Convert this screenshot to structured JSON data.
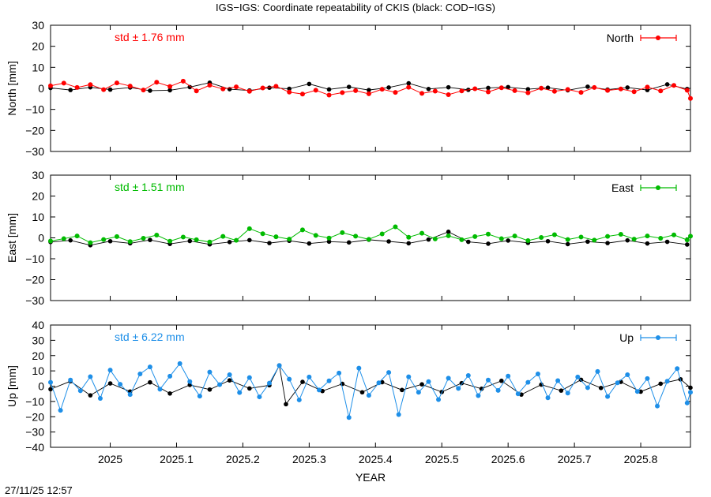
{
  "title": "IGS−IGS: Coordinate repeatability of CKIS (black: COD−IGS)",
  "timestamp": "27/11/25 12:57",
  "chart_data": {
    "type": "scatter",
    "xlabel": "YEAR",
    "xlim": [
      2024.91,
      2025.875
    ],
    "xticks": [
      2025,
      2025.1,
      2025.2,
      2025.3,
      2025.4,
      2025.5,
      2025.6,
      2025.7,
      2025.8
    ],
    "xtick_labels": [
      "2025",
      "2025.1",
      "2025.2",
      "2025.3",
      "2025.4",
      "2025.5",
      "2025.6",
      "2025.7",
      "2025.8"
    ],
    "grid": false,
    "legend_position": "top-right",
    "panels": [
      {
        "key": "north",
        "ylabel": "North [mm]",
        "ylim": [
          -30,
          30
        ],
        "yticks": [
          30,
          20,
          10,
          0,
          -10,
          -20,
          -30
        ],
        "ytick_labels": [
          "30",
          "20",
          "10",
          "0",
          "−10",
          "−20",
          "−30"
        ],
        "std_label": "std ± 1.76 mm",
        "legend_label": "North",
        "color": "#ff0000",
        "ref_color": "#000000",
        "series_points": [
          [
            2024.91,
            1.2
          ],
          [
            2024.93,
            2.5
          ],
          [
            2024.95,
            0.4
          ],
          [
            2024.97,
            1.8
          ],
          [
            2024.99,
            -0.6
          ],
          [
            2025.01,
            2.6
          ],
          [
            2025.03,
            1.1
          ],
          [
            2025.05,
            -0.8
          ],
          [
            2025.07,
            2.9
          ],
          [
            2025.09,
            0.9
          ],
          [
            2025.11,
            3.4
          ],
          [
            2025.13,
            -1.2
          ],
          [
            2025.15,
            1.5
          ],
          [
            2025.17,
            -0.3
          ],
          [
            2025.19,
            0.7
          ],
          [
            2025.21,
            -1.4
          ],
          [
            2025.23,
            0.2
          ],
          [
            2025.25,
            1.0
          ],
          [
            2025.27,
            -1.8
          ],
          [
            2025.29,
            -2.7
          ],
          [
            2025.31,
            -0.9
          ],
          [
            2025.33,
            -3.2
          ],
          [
            2025.35,
            -2.0
          ],
          [
            2025.37,
            -1.1
          ],
          [
            2025.39,
            -2.6
          ],
          [
            2025.41,
            -0.4
          ],
          [
            2025.43,
            -1.9
          ],
          [
            2025.45,
            0.5
          ],
          [
            2025.47,
            -2.4
          ],
          [
            2025.49,
            -1.3
          ],
          [
            2025.51,
            -3.0
          ],
          [
            2025.53,
            -1.2
          ],
          [
            2025.55,
            -0.2
          ],
          [
            2025.57,
            -1.7
          ],
          [
            2025.59,
            0.3
          ],
          [
            2025.61,
            -1.1
          ],
          [
            2025.63,
            -2.1
          ],
          [
            2025.65,
            0.1
          ],
          [
            2025.67,
            -1.4
          ],
          [
            2025.69,
            -0.5
          ],
          [
            2025.71,
            -1.9
          ],
          [
            2025.73,
            0.4
          ],
          [
            2025.75,
            -1.0
          ],
          [
            2025.77,
            -0.3
          ],
          [
            2025.79,
            -1.6
          ],
          [
            2025.81,
            0.6
          ],
          [
            2025.83,
            -1.2
          ],
          [
            2025.85,
            1.4
          ],
          [
            2025.87,
            -0.9
          ],
          [
            2025.875,
            -4.8
          ]
        ],
        "ref_points": [
          [
            2024.91,
            0.2
          ],
          [
            2024.94,
            -0.8
          ],
          [
            2024.97,
            0.5
          ],
          [
            2025.0,
            -0.6
          ],
          [
            2025.03,
            0.4
          ],
          [
            2025.06,
            -1.1
          ],
          [
            2025.09,
            -0.9
          ],
          [
            2025.12,
            0.6
          ],
          [
            2025.15,
            2.7
          ],
          [
            2025.18,
            -0.4
          ],
          [
            2025.21,
            -1.0
          ],
          [
            2025.24,
            0.3
          ],
          [
            2025.27,
            -0.2
          ],
          [
            2025.3,
            2.1
          ],
          [
            2025.33,
            -0.5
          ],
          [
            2025.36,
            0.7
          ],
          [
            2025.39,
            -0.8
          ],
          [
            2025.42,
            0.4
          ],
          [
            2025.45,
            2.4
          ],
          [
            2025.48,
            -0.3
          ],
          [
            2025.51,
            0.5
          ],
          [
            2025.54,
            -0.7
          ],
          [
            2025.57,
            0.2
          ],
          [
            2025.6,
            0.6
          ],
          [
            2025.63,
            -0.4
          ],
          [
            2025.66,
            0.3
          ],
          [
            2025.69,
            -0.9
          ],
          [
            2025.72,
            0.8
          ],
          [
            2025.75,
            -0.6
          ],
          [
            2025.78,
            0.4
          ],
          [
            2025.81,
            -0.8
          ],
          [
            2025.84,
            1.9
          ],
          [
            2025.87,
            -0.3
          ]
        ]
      },
      {
        "key": "east",
        "ylabel": "East [mm]",
        "ylim": [
          -30,
          30
        ],
        "yticks": [
          30,
          20,
          10,
          0,
          -10,
          -20,
          -30
        ],
        "ytick_labels": [
          "30",
          "20",
          "10",
          "0",
          "−10",
          "−20",
          "−30"
        ],
        "std_label": "std ± 1.51 mm",
        "legend_label": "East",
        "color": "#00bb00",
        "ref_color": "#000000",
        "series_points": [
          [
            2024.91,
            -1.5
          ],
          [
            2024.93,
            -0.4
          ],
          [
            2024.95,
            0.9
          ],
          [
            2024.97,
            -2.3
          ],
          [
            2024.99,
            -0.8
          ],
          [
            2025.01,
            0.6
          ],
          [
            2025.03,
            -1.8
          ],
          [
            2025.05,
            -0.2
          ],
          [
            2025.07,
            1.3
          ],
          [
            2025.09,
            -1.6
          ],
          [
            2025.11,
            0.4
          ],
          [
            2025.13,
            -0.9
          ],
          [
            2025.15,
            -2.0
          ],
          [
            2025.17,
            0.7
          ],
          [
            2025.19,
            -1.2
          ],
          [
            2025.21,
            4.4
          ],
          [
            2025.23,
            2.0
          ],
          [
            2025.25,
            0.5
          ],
          [
            2025.27,
            -0.6
          ],
          [
            2025.29,
            3.8
          ],
          [
            2025.31,
            1.2
          ],
          [
            2025.33,
            -0.1
          ],
          [
            2025.35,
            2.5
          ],
          [
            2025.37,
            0.8
          ],
          [
            2025.39,
            -0.7
          ],
          [
            2025.41,
            1.9
          ],
          [
            2025.43,
            5.3
          ],
          [
            2025.45,
            0.3
          ],
          [
            2025.47,
            2.2
          ],
          [
            2025.49,
            -0.5
          ],
          [
            2025.51,
            1.0
          ],
          [
            2025.53,
            -0.9
          ],
          [
            2025.55,
            0.6
          ],
          [
            2025.57,
            1.8
          ],
          [
            2025.59,
            -0.4
          ],
          [
            2025.61,
            0.9
          ],
          [
            2025.63,
            -1.3
          ],
          [
            2025.65,
            0.2
          ],
          [
            2025.67,
            1.5
          ],
          [
            2025.69,
            -0.8
          ],
          [
            2025.71,
            0.4
          ],
          [
            2025.73,
            -1.1
          ],
          [
            2025.75,
            0.7
          ],
          [
            2025.77,
            1.7
          ],
          [
            2025.79,
            -0.6
          ],
          [
            2025.81,
            0.9
          ],
          [
            2025.83,
            -0.2
          ],
          [
            2025.85,
            1.4
          ],
          [
            2025.87,
            -1.0
          ],
          [
            2025.875,
            0.8
          ]
        ],
        "ref_points": [
          [
            2024.91,
            -2.0
          ],
          [
            2024.94,
            -1.2
          ],
          [
            2024.97,
            -3.5
          ],
          [
            2025.0,
            -1.6
          ],
          [
            2025.03,
            -2.6
          ],
          [
            2025.06,
            -1.0
          ],
          [
            2025.09,
            -2.9
          ],
          [
            2025.12,
            -1.5
          ],
          [
            2025.15,
            -3.1
          ],
          [
            2025.18,
            -2.0
          ],
          [
            2025.21,
            -1.1
          ],
          [
            2025.24,
            -2.5
          ],
          [
            2025.27,
            -1.4
          ],
          [
            2025.3,
            -2.7
          ],
          [
            2025.33,
            -1.8
          ],
          [
            2025.36,
            -2.2
          ],
          [
            2025.39,
            -0.9
          ],
          [
            2025.42,
            -1.7
          ],
          [
            2025.45,
            -2.6
          ],
          [
            2025.48,
            -0.8
          ],
          [
            2025.51,
            2.9
          ],
          [
            2025.54,
            -1.9
          ],
          [
            2025.57,
            -2.8
          ],
          [
            2025.6,
            -1.3
          ],
          [
            2025.63,
            -2.4
          ],
          [
            2025.66,
            -1.6
          ],
          [
            2025.69,
            -3.0
          ],
          [
            2025.72,
            -1.8
          ],
          [
            2025.75,
            -2.5
          ],
          [
            2025.78,
            -1.2
          ],
          [
            2025.81,
            -2.7
          ],
          [
            2025.84,
            -1.9
          ],
          [
            2025.87,
            -3.2
          ]
        ]
      },
      {
        "key": "up",
        "ylabel": "Up [mm]",
        "ylim": [
          -40,
          40
        ],
        "yticks": [
          40,
          30,
          20,
          10,
          0,
          -10,
          -20,
          -30,
          -40
        ],
        "ytick_labels": [
          "40",
          "30",
          "20",
          "10",
          "0",
          "−10",
          "−20",
          "−30",
          "−40"
        ],
        "std_label": "std ± 6.22 mm",
        "legend_label": "Up",
        "color": "#1e8fe8",
        "ref_color": "#000000",
        "series_points": [
          [
            2024.91,
            2.5
          ],
          [
            2024.925,
            -15.8
          ],
          [
            2024.94,
            4.0
          ],
          [
            2024.955,
            -3.0
          ],
          [
            2024.97,
            6.2
          ],
          [
            2024.985,
            -8.0
          ],
          [
            2025.0,
            10.5
          ],
          [
            2025.015,
            1.2
          ],
          [
            2025.03,
            -5.5
          ],
          [
            2025.045,
            8.0
          ],
          [
            2025.06,
            12.6
          ],
          [
            2025.075,
            -2.0
          ],
          [
            2025.09,
            6.5
          ],
          [
            2025.105,
            14.8
          ],
          [
            2025.12,
            3.0
          ],
          [
            2025.135,
            -6.5
          ],
          [
            2025.15,
            9.2
          ],
          [
            2025.165,
            1.0
          ],
          [
            2025.18,
            7.5
          ],
          [
            2025.195,
            -4.2
          ],
          [
            2025.21,
            5.6
          ],
          [
            2025.225,
            -7.0
          ],
          [
            2025.24,
            2.0
          ],
          [
            2025.255,
            13.5
          ],
          [
            2025.27,
            4.6
          ],
          [
            2025.285,
            -9.0
          ],
          [
            2025.3,
            6.0
          ],
          [
            2025.315,
            -2.5
          ],
          [
            2025.33,
            3.5
          ],
          [
            2025.345,
            8.6
          ],
          [
            2025.36,
            -20.5
          ],
          [
            2025.375,
            11.8
          ],
          [
            2025.39,
            -6.0
          ],
          [
            2025.405,
            2.2
          ],
          [
            2025.42,
            9.0
          ],
          [
            2025.435,
            -18.6
          ],
          [
            2025.45,
            6.1
          ],
          [
            2025.465,
            -4.0
          ],
          [
            2025.48,
            3.0
          ],
          [
            2025.495,
            -8.8
          ],
          [
            2025.51,
            5.2
          ],
          [
            2025.525,
            -1.5
          ],
          [
            2025.54,
            7.0
          ],
          [
            2025.555,
            -6.2
          ],
          [
            2025.57,
            4.0
          ],
          [
            2025.585,
            -2.8
          ],
          [
            2025.6,
            6.6
          ],
          [
            2025.615,
            -5.0
          ],
          [
            2025.63,
            2.5
          ],
          [
            2025.645,
            8.0
          ],
          [
            2025.66,
            -7.6
          ],
          [
            2025.675,
            3.6
          ],
          [
            2025.69,
            -4.5
          ],
          [
            2025.705,
            6.0
          ],
          [
            2025.72,
            -1.0
          ],
          [
            2025.735,
            9.6
          ],
          [
            2025.75,
            -6.8
          ],
          [
            2025.765,
            2.2
          ],
          [
            2025.78,
            7.5
          ],
          [
            2025.795,
            -3.5
          ],
          [
            2025.81,
            5.0
          ],
          [
            2025.825,
            -13.0
          ],
          [
            2025.84,
            3.2
          ],
          [
            2025.855,
            11.5
          ],
          [
            2025.87,
            -11.0
          ],
          [
            2025.875,
            -4.0
          ]
        ],
        "ref_points": [
          [
            2024.91,
            -2.0
          ],
          [
            2024.94,
            3.2
          ],
          [
            2024.97,
            -6.0
          ],
          [
            2025.0,
            1.8
          ],
          [
            2025.03,
            -3.5
          ],
          [
            2025.06,
            2.5
          ],
          [
            2025.09,
            -4.8
          ],
          [
            2025.12,
            0.8
          ],
          [
            2025.15,
            -2.2
          ],
          [
            2025.18,
            3.8
          ],
          [
            2025.21,
            -1.5
          ],
          [
            2025.24,
            0.6
          ],
          [
            2025.255,
            13.6
          ],
          [
            2025.265,
            -11.8
          ],
          [
            2025.29,
            2.8
          ],
          [
            2025.32,
            -3.2
          ],
          [
            2025.35,
            1.5
          ],
          [
            2025.38,
            -4.0
          ],
          [
            2025.41,
            2.6
          ],
          [
            2025.44,
            -2.5
          ],
          [
            2025.47,
            1.2
          ],
          [
            2025.5,
            -3.8
          ],
          [
            2025.53,
            2.0
          ],
          [
            2025.56,
            -1.7
          ],
          [
            2025.59,
            3.5
          ],
          [
            2025.62,
            -5.5
          ],
          [
            2025.65,
            1.0
          ],
          [
            2025.68,
            -2.9
          ],
          [
            2025.71,
            4.2
          ],
          [
            2025.74,
            -1.2
          ],
          [
            2025.77,
            2.8
          ],
          [
            2025.8,
            -3.6
          ],
          [
            2025.83,
            1.6
          ],
          [
            2025.86,
            4.5
          ],
          [
            2025.875,
            -1.0
          ]
        ]
      }
    ]
  }
}
